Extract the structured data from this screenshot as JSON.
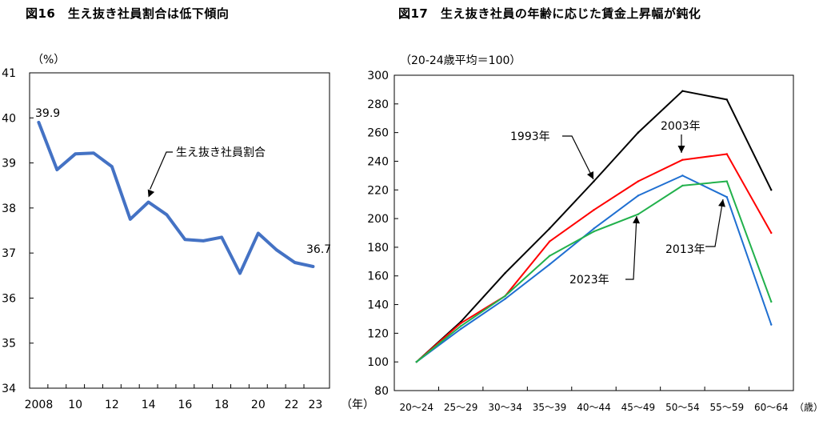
{
  "chart_data": [
    {
      "type": "line",
      "title": "図16　生え抜き社員割合は低下傾向",
      "ylabel": "（%）",
      "xlabel": "（年）",
      "ylim": [
        34,
        41
      ],
      "yticks": [
        "34",
        "35",
        "36",
        "37",
        "38",
        "39",
        "40",
        "41"
      ],
      "xticks": [
        "2008",
        "10",
        "12",
        "14",
        "16",
        "18",
        "20",
        "22",
        "23"
      ],
      "x": [
        2008,
        2009,
        2010,
        2011,
        2012,
        2013,
        2014,
        2015,
        2016,
        2017,
        2018,
        2019,
        2020,
        2021,
        2022,
        2023
      ],
      "series": [
        {
          "name": "生え抜き社員割合",
          "color": "#4472c4",
          "values": [
            39.9,
            38.85,
            39.2,
            39.22,
            38.92,
            37.75,
            38.13,
            37.85,
            37.3,
            37.27,
            37.35,
            36.55,
            37.44,
            37.07,
            36.79,
            36.7
          ]
        }
      ],
      "annotations": [
        {
          "text": "39.9"
        },
        {
          "text": "36.7"
        },
        {
          "text": "生え抜き社員割合"
        }
      ],
      "grid": false
    },
    {
      "type": "line",
      "title": "図17　生え抜き社員の年齢に応じた賃金上昇幅が鈍化",
      "ylabel": "（20-24歳平均＝100）",
      "xlabel": "（歳）",
      "ylim": [
        80,
        300
      ],
      "yticks": [
        "80",
        "100",
        "120",
        "140",
        "160",
        "180",
        "200",
        "220",
        "240",
        "260",
        "280",
        "300"
      ],
      "categories": [
        "20～24",
        "25～29",
        "30～34",
        "35～39",
        "40～44",
        "45～49",
        "50～54",
        "55～59",
        "60～64"
      ],
      "series": [
        {
          "name": "1993年",
          "color": "#000000",
          "values": [
            100,
            128,
            162,
            193,
            226,
            260,
            289,
            283,
            220
          ]
        },
        {
          "name": "2003年",
          "color": "#ff0000",
          "values": [
            100,
            127,
            146,
            184,
            206,
            226,
            241,
            245,
            190
          ]
        },
        {
          "name": "2013年",
          "color": "#1f6fd1",
          "values": [
            100,
            123,
            144,
            168,
            193,
            216,
            230,
            215,
            126
          ]
        },
        {
          "name": "2023年",
          "color": "#22b14c",
          "values": [
            100,
            125,
            146,
            174,
            191,
            203,
            223,
            226,
            142
          ]
        }
      ],
      "grid": false
    }
  ]
}
